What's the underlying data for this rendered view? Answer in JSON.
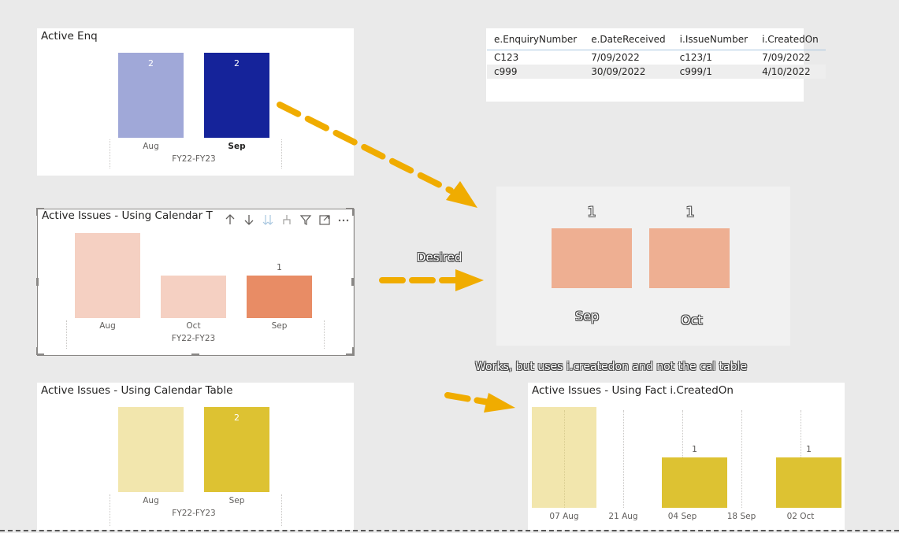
{
  "visuals": {
    "active_enq": {
      "title": "Active Enq",
      "bars": [
        {
          "category": "Aug",
          "value": "2",
          "color": "#a0a8d8"
        },
        {
          "category": "Sep",
          "value": "2",
          "color": "#15239a"
        }
      ],
      "axis_title": "FY22-FY23"
    },
    "issues_calendar_selected": {
      "title": "Active Issues - Using Calendar T",
      "bars": [
        {
          "category": "Aug",
          "value": "",
          "color": "#f5d0c2"
        },
        {
          "category": "Oct",
          "value": "",
          "color": "#f5d0c2"
        },
        {
          "category": "Sep",
          "value": "1",
          "color": "#e88c65"
        }
      ],
      "axis_title": "FY22-FY23",
      "header_icons": [
        "arrow-up-icon",
        "arrow-down-icon",
        "double-arrow-down-icon",
        "expand-hierarchy-icon",
        "filter-icon",
        "focus-mode-icon",
        "more-options-icon"
      ]
    },
    "issues_calendar": {
      "title": "Active Issues - Using Calendar Table",
      "bars": [
        {
          "category": "Aug",
          "value": "",
          "color": "#f2e6ad"
        },
        {
          "category": "Sep",
          "value": "2",
          "color": "#ddc232"
        }
      ],
      "axis_title": "FY22-FY23"
    },
    "issues_fact": {
      "title": "Active Issues - Using Fact i.CreatedOn",
      "bars": [
        {
          "value": "",
          "color": "#f2e6ad"
        },
        {
          "value": "1",
          "color": "#ddc232"
        },
        {
          "value": "1",
          "color": "#ddc232"
        }
      ],
      "ticks": [
        "07 Aug",
        "21 Aug",
        "04 Sep",
        "18 Sep",
        "02 Oct"
      ]
    },
    "desired": {
      "bars": [
        {
          "category": "Sep",
          "value": "1",
          "color": "#eeaf92"
        },
        {
          "category": "Oct",
          "value": "1",
          "color": "#eeaf92"
        }
      ]
    }
  },
  "table": {
    "headers": [
      "e.EnquiryNumber",
      "e.DateReceived",
      "i.IssueNumber",
      "i.CreatedOn"
    ],
    "rows": [
      [
        "C123",
        "7/09/2022",
        "c123/1",
        "7/09/2022"
      ],
      [
        "c999",
        "30/09/2022",
        "c999/1",
        "4/10/2022"
      ]
    ]
  },
  "annotations": {
    "desired": "Desired",
    "works_note": "Works, but uses i.createdon and not the cal table"
  },
  "colors": {
    "arrow": "#f0ac00",
    "canvas": "#eaeaea",
    "desired_panel": "#f1f1f1"
  }
}
